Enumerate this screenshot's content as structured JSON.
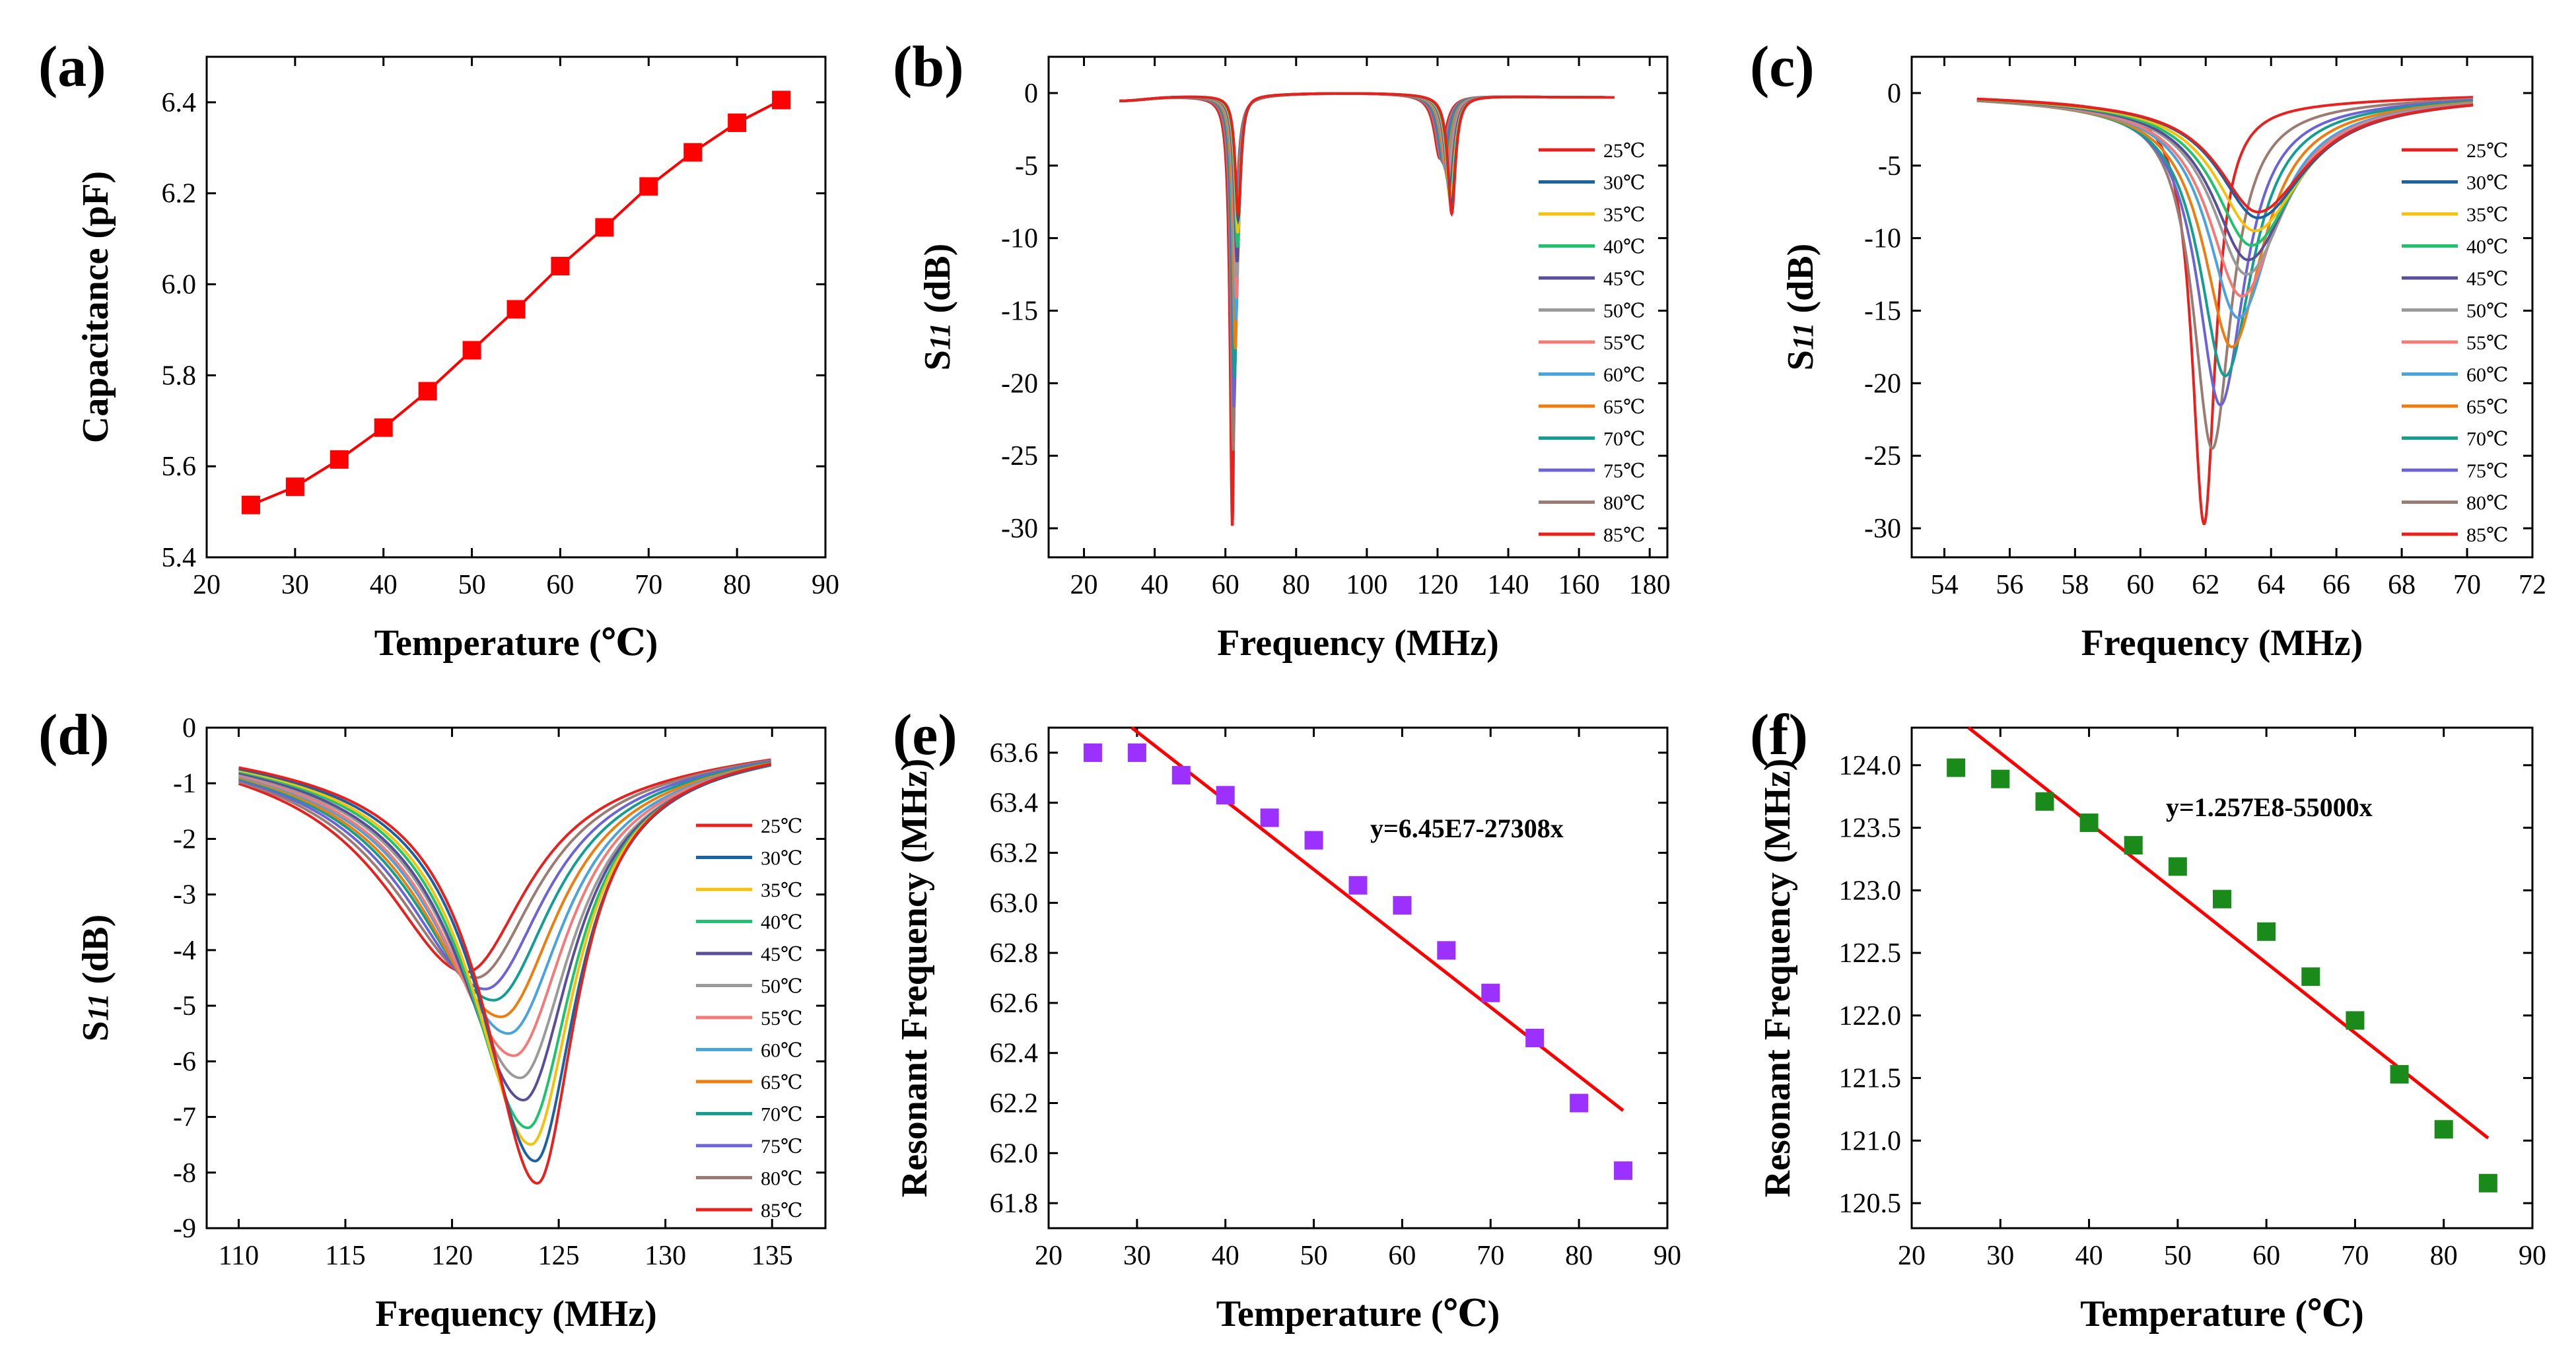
{
  "colors": {
    "t25": "#e8201e",
    "t30": "#1b62a3",
    "t35": "#f4c20d",
    "t40": "#1fc26e",
    "t45": "#5a4d9a",
    "t50": "#9a9a9a",
    "t55": "#f47a78",
    "t60": "#4aa3dc",
    "t65": "#ee7d10",
    "t70": "#139e92",
    "t75": "#6b63d6",
    "t80": "#9b7b72",
    "t85": "#e8201e",
    "axis": "#000000",
    "fit": "#ff0000",
    "marker_a": "#ff0000",
    "marker_e": "#9b30ff",
    "marker_f": "#1a8a1a"
  },
  "legend_labels": [
    "25℃",
    "30℃",
    "35℃",
    "40℃",
    "45℃",
    "50℃",
    "55℃",
    "60℃",
    "65℃",
    "70℃",
    "75℃",
    "80℃",
    "85℃"
  ],
  "chart_data": [
    {
      "id": "a",
      "panel_label": "(a)",
      "type": "line",
      "xlabel": "Temperature (℃)",
      "ylabel": "Capacitance (pF)",
      "xlim": [
        20,
        90
      ],
      "ylim": [
        5.4,
        6.5
      ],
      "xticks": [
        20,
        30,
        40,
        50,
        60,
        70,
        80,
        90
      ],
      "yticks": [
        5.4,
        5.6,
        5.8,
        6.0,
        6.2,
        6.4
      ],
      "xtick_labels": [
        "20",
        "30",
        "40",
        "50",
        "60",
        "70",
        "80",
        "90"
      ],
      "ytick_labels": [
        "5.4",
        "5.6",
        "5.8",
        "6.0",
        "6.2",
        "6.4"
      ],
      "series": [
        {
          "name": "Capacitance",
          "x": [
            25,
            30,
            35,
            40,
            45,
            50,
            55,
            60,
            65,
            70,
            75,
            80,
            85
          ],
          "y": [
            5.515,
            5.555,
            5.615,
            5.685,
            5.765,
            5.855,
            5.945,
            6.04,
            6.125,
            6.215,
            6.29,
            6.355,
            6.405
          ]
        }
      ]
    },
    {
      "id": "b",
      "panel_label": "(b)",
      "type": "line",
      "xlabel": "Frequency (MHz)",
      "ylabel_main": "S",
      "ylabel_sub": "11",
      "ylabel_unit": " (dB)",
      "xlim": [
        10,
        185
      ],
      "ylim": [
        -32,
        2.5
      ],
      "xticks": [
        20,
        40,
        60,
        80,
        100,
        120,
        140,
        160,
        180
      ],
      "yticks": [
        0,
        -5,
        -10,
        -15,
        -20,
        -25,
        -30
      ],
      "xtick_labels": [
        "20",
        "40",
        "60",
        "80",
        "100",
        "120",
        "140",
        "160",
        "180"
      ],
      "ytick_labels": [
        "0",
        "-5",
        "-10",
        "-15",
        "-20",
        "-25",
        "-30"
      ],
      "x_range": [
        30,
        170
      ],
      "legend_position": "right",
      "temperatures": [
        25,
        30,
        35,
        40,
        45,
        50,
        55,
        60,
        65,
        70,
        75,
        80,
        85
      ],
      "dip1": {
        "freq": [
          63.6,
          63.6,
          63.5,
          63.4,
          63.3,
          63.25,
          63.1,
          63.0,
          62.8,
          62.6,
          62.45,
          62.2,
          61.95
        ],
        "depth": [
          8.2,
          8.6,
          9.5,
          10.5,
          11.5,
          12.5,
          14.0,
          15.5,
          17.5,
          19.5,
          21.5,
          24.5,
          29.7
        ],
        "width": [
          1.0,
          1.0,
          0.98,
          0.96,
          0.94,
          0.92,
          0.9,
          0.88,
          0.86,
          0.84,
          0.82,
          0.8,
          0.78
        ]
      },
      "dip2": {
        "freq": [
          124.0,
          123.9,
          123.7,
          123.55,
          123.35,
          123.2,
          122.9,
          122.65,
          122.3,
          121.95,
          121.55,
          121.1,
          120.65
        ],
        "depth": [
          8.2,
          7.8,
          7.5,
          7.2,
          6.7,
          6.3,
          5.9,
          5.5,
          5.2,
          4.9,
          4.7,
          4.5,
          4.4
        ],
        "width": [
          1.3,
          1.35,
          1.4,
          1.45,
          1.5,
          1.55,
          1.6,
          1.65,
          1.7,
          1.75,
          1.8,
          1.85,
          1.9
        ]
      },
      "baseline": -0.3
    },
    {
      "id": "c",
      "panel_label": "(c)",
      "type": "line",
      "xlabel": "Frequency (MHz)",
      "ylabel_main": "S",
      "ylabel_sub": "11",
      "ylabel_unit": " (dB)",
      "xlim": [
        53,
        72
      ],
      "ylim": [
        -32,
        2.5
      ],
      "xticks": [
        54,
        56,
        58,
        60,
        62,
        64,
        66,
        68,
        70,
        72
      ],
      "yticks": [
        0,
        -5,
        -10,
        -15,
        -20,
        -25,
        -30
      ],
      "xtick_labels": [
        "54",
        "56",
        "58",
        "60",
        "62",
        "64",
        "66",
        "68",
        "70",
        "72"
      ],
      "ytick_labels": [
        "0",
        "-5",
        "-10",
        "-15",
        "-20",
        "-25",
        "-30"
      ],
      "x_range": [
        55,
        70.2
      ],
      "legend_position": "right"
    },
    {
      "id": "d",
      "panel_label": "(d)",
      "type": "line",
      "xlabel": "Frequency (MHz)",
      "ylabel_main": "S",
      "ylabel_sub": "11",
      "ylabel_unit": " (dB)",
      "xlim": [
        108.5,
        137.5
      ],
      "ylim": [
        -9,
        0
      ],
      "xticks": [
        110,
        115,
        120,
        125,
        130,
        135
      ],
      "yticks": [
        0,
        -1,
        -2,
        -3,
        -4,
        -5,
        -6,
        -7,
        -8,
        -9
      ],
      "xtick_labels": [
        "110",
        "115",
        "120",
        "125",
        "130",
        "135"
      ],
      "ytick_labels": [
        "0",
        "-1",
        "-2",
        "-3",
        "-4",
        "-5",
        "-6",
        "-7",
        "-8",
        "-9"
      ],
      "x_range": [
        110,
        135
      ],
      "legend_position": "right"
    },
    {
      "id": "e",
      "panel_label": "(e)",
      "type": "scatter",
      "xlabel": "Temperature (℃)",
      "ylabel": "Resonant Frequency (MHz)",
      "xlim": [
        20,
        90
      ],
      "ylim": [
        61.7,
        63.7
      ],
      "xticks": [
        20,
        30,
        40,
        50,
        60,
        70,
        80,
        90
      ],
      "yticks": [
        61.8,
        62.0,
        62.2,
        62.4,
        62.6,
        62.8,
        63.0,
        63.2,
        63.4,
        63.6
      ],
      "xtick_labels": [
        "20",
        "30",
        "40",
        "50",
        "60",
        "70",
        "80",
        "90"
      ],
      "ytick_labels": [
        "61.8",
        "62.0",
        "62.2",
        "62.4",
        "62.6",
        "62.8",
        "63.0",
        "63.2",
        "63.4",
        "63.6"
      ],
      "points": {
        "x": [
          25,
          30,
          35,
          40,
          45,
          50,
          55,
          60,
          65,
          70,
          75,
          80,
          85
        ],
        "y": [
          63.6,
          63.6,
          63.51,
          63.43,
          63.34,
          63.25,
          63.07,
          62.99,
          62.81,
          62.64,
          62.46,
          62.2,
          61.93
        ]
      },
      "fit": {
        "x": [
          29.4,
          85
        ],
        "y": [
          63.7,
          62.17
        ]
      },
      "annotation": "y=6.45E7-27308x"
    },
    {
      "id": "f",
      "panel_label": "(f)",
      "type": "scatter",
      "xlabel": "Temperature (℃)",
      "ylabel": "Resonant Frequency (MHz)",
      "xlim": [
        20,
        90
      ],
      "ylim": [
        120.3,
        124.3
      ],
      "xticks": [
        20,
        30,
        40,
        50,
        60,
        70,
        80,
        90
      ],
      "yticks": [
        120.5,
        121.0,
        121.5,
        122.0,
        122.5,
        123.0,
        123.5,
        124.0
      ],
      "xtick_labels": [
        "20",
        "30",
        "40",
        "50",
        "60",
        "70",
        "80",
        "90"
      ],
      "ytick_labels": [
        "120.5",
        "121.0",
        "121.5",
        "122.0",
        "122.5",
        "123.0",
        "123.5",
        "124.0"
      ],
      "points": {
        "x": [
          25,
          30,
          35,
          40,
          45,
          50,
          55,
          60,
          65,
          70,
          75,
          80,
          85
        ],
        "y": [
          123.98,
          123.89,
          123.71,
          123.54,
          123.36,
          123.19,
          122.93,
          122.67,
          122.31,
          121.96,
          121.53,
          121.09,
          120.66
        ]
      },
      "fit": {
        "x": [
          26.4,
          85
        ],
        "y": [
          124.3,
          121.02
        ]
      },
      "annotation": "y=1.257E8-55000x"
    }
  ]
}
